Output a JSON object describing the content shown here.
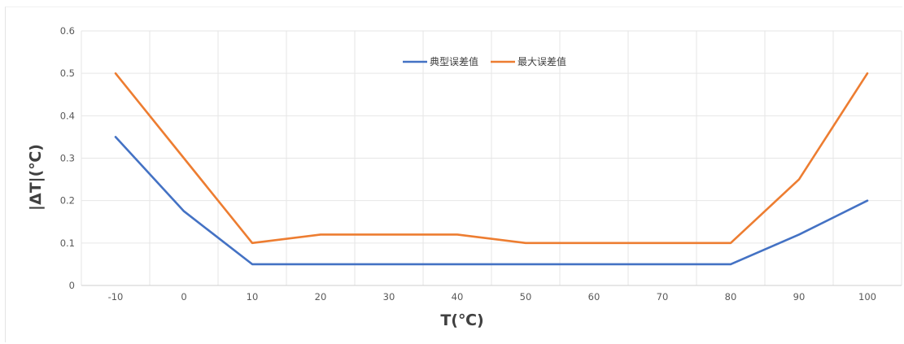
{
  "chart_data": {
    "type": "line",
    "title": "",
    "xlabel": "T(℃)",
    "ylabel": "|ΔT|(℃)",
    "categories": [
      "-10",
      "0",
      "10",
      "20",
      "30",
      "40",
      "50",
      "60",
      "70",
      "80",
      "90",
      "100"
    ],
    "ylim": [
      0,
      0.6
    ],
    "yticks": [
      "0",
      "0.1",
      "0.2",
      "0.3",
      "0.4",
      "0.5",
      "0.6"
    ],
    "grid": true,
    "legend_position": "top-center",
    "series": [
      {
        "name": "典型误差值",
        "color": "#4472c4",
        "values": [
          0.35,
          0.175,
          0.05,
          0.05,
          0.05,
          0.05,
          0.05,
          0.05,
          0.05,
          0.05,
          0.12,
          0.2
        ]
      },
      {
        "name": "最大误差值",
        "color": "#ed7d31",
        "values": [
          0.5,
          0.3,
          0.1,
          0.12,
          0.12,
          0.12,
          0.1,
          0.1,
          0.1,
          0.1,
          0.25,
          0.5
        ]
      }
    ]
  }
}
